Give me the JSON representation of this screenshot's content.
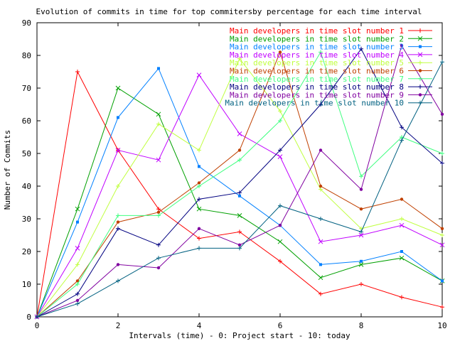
{
  "chart_data": {
    "type": "line",
    "title": "Evolution of commits in time for top commitersby percentage for each time interval",
    "xlabel": "Intervals (time) - 0: Project start - 10: today",
    "ylabel": "Number of Commits",
    "xlim": [
      0,
      10
    ],
    "ylim": [
      0,
      90
    ],
    "x_ticks": [
      0,
      2,
      4,
      6,
      8,
      10
    ],
    "y_ticks": [
      0,
      10,
      20,
      30,
      40,
      50,
      60,
      70,
      80,
      90
    ],
    "legend_position": "top-right",
    "grid": false,
    "x": [
      0,
      1,
      2,
      3,
      4,
      5,
      6,
      7,
      8,
      9,
      10
    ],
    "series": [
      {
        "name": "Main developers in time slot number 1",
        "color": "#ff0000",
        "marker": "plus",
        "values": [
          0,
          75,
          51,
          33,
          24,
          26,
          17,
          7,
          10,
          6,
          3
        ]
      },
      {
        "name": "Main developers in time slot number 2",
        "color": "#00a000",
        "marker": "cross",
        "values": [
          0,
          33,
          70,
          62,
          33,
          31,
          23,
          12,
          16,
          18,
          11
        ]
      },
      {
        "name": "Main developers in time slot number 3",
        "color": "#0080ff",
        "marker": "square",
        "values": [
          0,
          29,
          61,
          76,
          46,
          37,
          28,
          16,
          17,
          20,
          11
        ]
      },
      {
        "name": "Main developers in time slot number 4",
        "color": "#c000ff",
        "marker": "cross",
        "values": [
          0,
          21,
          51,
          48,
          74,
          56,
          49,
          23,
          25,
          28,
          22
        ]
      },
      {
        "name": "Main developers in time slot number 5",
        "color": "#c0ff40",
        "marker": "plus",
        "values": [
          0,
          16,
          40,
          59,
          51,
          79,
          63,
          39,
          27,
          30,
          25
        ]
      },
      {
        "name": "Main developers in time slot number 6",
        "color": "#c04000",
        "marker": "circle",
        "values": [
          0,
          11,
          29,
          32,
          41,
          51,
          81,
          40,
          33,
          36,
          27
        ]
      },
      {
        "name": "Main developers in time slot number 7",
        "color": "#40ff80",
        "marker": "plus",
        "values": [
          0,
          10,
          31,
          31,
          40,
          48,
          60,
          81,
          43,
          55,
          50
        ]
      },
      {
        "name": "Main developers in time slot number 8",
        "color": "#000080",
        "marker": "plus",
        "values": [
          0,
          7,
          27,
          22,
          36,
          38,
          51,
          65,
          82,
          58,
          47
        ]
      },
      {
        "name": "Main developers in time slot number 9",
        "color": "#8000a0",
        "marker": "circle",
        "values": [
          0,
          5,
          16,
          15,
          27,
          22,
          28,
          51,
          39,
          83,
          62
        ]
      },
      {
        "name": "Main developers in time slot number 10",
        "color": "#006080",
        "marker": "plus",
        "values": [
          0,
          4,
          11,
          18,
          21,
          21,
          34,
          30,
          26,
          54,
          78
        ]
      }
    ]
  }
}
